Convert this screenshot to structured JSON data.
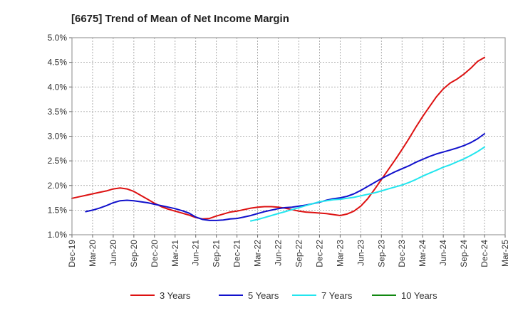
{
  "chart_data": {
    "type": "line",
    "title": "[6675]  Trend of Mean of Net Income Margin",
    "xlabel": "",
    "ylabel": "",
    "x_ticks": [
      "Dec-19",
      "Mar-20",
      "Jun-20",
      "Sep-20",
      "Dec-20",
      "Mar-21",
      "Jun-21",
      "Sep-21",
      "Dec-21",
      "Mar-22",
      "Jun-22",
      "Sep-22",
      "Dec-22",
      "Mar-23",
      "Jun-23",
      "Sep-23",
      "Dec-23",
      "Mar-24",
      "Jun-24",
      "Sep-24",
      "Dec-24",
      "Mar-25"
    ],
    "y_ticks": [
      "1.0%",
      "1.5%",
      "2.0%",
      "2.5%",
      "3.0%",
      "3.5%",
      "4.0%",
      "4.5%",
      "5.0%"
    ],
    "ylim": [
      1.0,
      5.0
    ],
    "grid": true,
    "legend_position": "bottom",
    "series": [
      {
        "name": "3 Years",
        "color": "#dd1111",
        "points": [
          [
            "Dec-19",
            1.74
          ],
          [
            "Jan-20",
            1.77
          ],
          [
            "Feb-20",
            1.8
          ],
          [
            "Mar-20",
            1.83
          ],
          [
            "Apr-20",
            1.86
          ],
          [
            "May-20",
            1.89
          ],
          [
            "Jun-20",
            1.93
          ],
          [
            "Jul-20",
            1.95
          ],
          [
            "Aug-20",
            1.93
          ],
          [
            "Sep-20",
            1.88
          ],
          [
            "Oct-20",
            1.8
          ],
          [
            "Nov-20",
            1.72
          ],
          [
            "Dec-20",
            1.64
          ],
          [
            "Jan-21",
            1.57
          ],
          [
            "Feb-21",
            1.52
          ],
          [
            "Mar-21",
            1.48
          ],
          [
            "Apr-21",
            1.44
          ],
          [
            "May-21",
            1.4
          ],
          [
            "Jun-21",
            1.35
          ],
          [
            "Jul-21",
            1.32
          ],
          [
            "Aug-21",
            1.33
          ],
          [
            "Sep-21",
            1.38
          ],
          [
            "Oct-21",
            1.42
          ],
          [
            "Nov-21",
            1.46
          ],
          [
            "Dec-21",
            1.48
          ],
          [
            "Jan-22",
            1.51
          ],
          [
            "Feb-22",
            1.54
          ],
          [
            "Mar-22",
            1.56
          ],
          [
            "Apr-22",
            1.57
          ],
          [
            "May-22",
            1.57
          ],
          [
            "Jun-22",
            1.56
          ],
          [
            "Jul-22",
            1.54
          ],
          [
            "Aug-22",
            1.51
          ],
          [
            "Sep-22",
            1.48
          ],
          [
            "Oct-22",
            1.46
          ],
          [
            "Nov-22",
            1.45
          ],
          [
            "Dec-22",
            1.44
          ],
          [
            "Jan-23",
            1.43
          ],
          [
            "Feb-23",
            1.41
          ],
          [
            "Mar-23",
            1.39
          ],
          [
            "Apr-23",
            1.42
          ],
          [
            "May-23",
            1.48
          ],
          [
            "Jun-23",
            1.58
          ],
          [
            "Jul-23",
            1.73
          ],
          [
            "Aug-23",
            1.92
          ],
          [
            "Sep-23",
            2.12
          ],
          [
            "Oct-23",
            2.32
          ],
          [
            "Nov-23",
            2.52
          ],
          [
            "Dec-23",
            2.73
          ],
          [
            "Jan-24",
            2.95
          ],
          [
            "Feb-24",
            3.18
          ],
          [
            "Mar-24",
            3.4
          ],
          [
            "Apr-24",
            3.6
          ],
          [
            "May-24",
            3.8
          ],
          [
            "Jun-24",
            3.96
          ],
          [
            "Jul-24",
            4.08
          ],
          [
            "Aug-24",
            4.16
          ],
          [
            "Sep-24",
            4.26
          ],
          [
            "Oct-24",
            4.38
          ],
          [
            "Nov-24",
            4.52
          ],
          [
            "Dec-24",
            4.6
          ]
        ]
      },
      {
        "name": "5 Years",
        "color": "#1111cc",
        "points": [
          [
            "Feb-20",
            1.47
          ],
          [
            "Mar-20",
            1.5
          ],
          [
            "Apr-20",
            1.54
          ],
          [
            "May-20",
            1.59
          ],
          [
            "Jun-20",
            1.65
          ],
          [
            "Jul-20",
            1.69
          ],
          [
            "Aug-20",
            1.7
          ],
          [
            "Sep-20",
            1.69
          ],
          [
            "Oct-20",
            1.67
          ],
          [
            "Nov-20",
            1.65
          ],
          [
            "Dec-20",
            1.62
          ],
          [
            "Jan-21",
            1.59
          ],
          [
            "Feb-21",
            1.56
          ],
          [
            "Mar-21",
            1.53
          ],
          [
            "Apr-21",
            1.49
          ],
          [
            "May-21",
            1.44
          ],
          [
            "Jun-21",
            1.36
          ],
          [
            "Jul-21",
            1.31
          ],
          [
            "Aug-21",
            1.29
          ],
          [
            "Sep-21",
            1.29
          ],
          [
            "Oct-21",
            1.3
          ],
          [
            "Nov-21",
            1.32
          ],
          [
            "Dec-21",
            1.33
          ],
          [
            "Jan-22",
            1.36
          ],
          [
            "Feb-22",
            1.39
          ],
          [
            "Mar-22",
            1.43
          ],
          [
            "Apr-22",
            1.47
          ],
          [
            "May-22",
            1.5
          ],
          [
            "Jun-22",
            1.53
          ],
          [
            "Jul-22",
            1.55
          ],
          [
            "Aug-22",
            1.56
          ],
          [
            "Sep-22",
            1.58
          ],
          [
            "Oct-22",
            1.6
          ],
          [
            "Nov-22",
            1.63
          ],
          [
            "Dec-22",
            1.66
          ],
          [
            "Jan-23",
            1.7
          ],
          [
            "Feb-23",
            1.73
          ],
          [
            "Mar-23",
            1.75
          ],
          [
            "Apr-23",
            1.78
          ],
          [
            "May-23",
            1.83
          ],
          [
            "Jun-23",
            1.9
          ],
          [
            "Jul-23",
            1.98
          ],
          [
            "Aug-23",
            2.06
          ],
          [
            "Sep-23",
            2.14
          ],
          [
            "Oct-23",
            2.21
          ],
          [
            "Nov-23",
            2.28
          ],
          [
            "Dec-23",
            2.34
          ],
          [
            "Jan-24",
            2.4
          ],
          [
            "Feb-24",
            2.47
          ],
          [
            "Mar-24",
            2.53
          ],
          [
            "Apr-24",
            2.59
          ],
          [
            "May-24",
            2.64
          ],
          [
            "Jun-24",
            2.68
          ],
          [
            "Jul-24",
            2.72
          ],
          [
            "Aug-24",
            2.76
          ],
          [
            "Sep-24",
            2.81
          ],
          [
            "Oct-24",
            2.87
          ],
          [
            "Nov-24",
            2.95
          ],
          [
            "Dec-24",
            3.05
          ]
        ]
      },
      {
        "name": "7 Years",
        "color": "#22e5ee",
        "points": [
          [
            "Feb-22",
            1.28
          ],
          [
            "Mar-22",
            1.31
          ],
          [
            "Apr-22",
            1.35
          ],
          [
            "May-22",
            1.39
          ],
          [
            "Jun-22",
            1.43
          ],
          [
            "Jul-22",
            1.47
          ],
          [
            "Aug-22",
            1.51
          ],
          [
            "Sep-22",
            1.55
          ],
          [
            "Oct-22",
            1.59
          ],
          [
            "Nov-22",
            1.63
          ],
          [
            "Dec-22",
            1.67
          ],
          [
            "Jan-23",
            1.69
          ],
          [
            "Feb-23",
            1.71
          ],
          [
            "Mar-23",
            1.72
          ],
          [
            "Apr-23",
            1.74
          ],
          [
            "May-23",
            1.76
          ],
          [
            "Jun-23",
            1.79
          ],
          [
            "Jul-23",
            1.82
          ],
          [
            "Aug-23",
            1.85
          ],
          [
            "Sep-23",
            1.89
          ],
          [
            "Oct-23",
            1.93
          ],
          [
            "Nov-23",
            1.97
          ],
          [
            "Dec-23",
            2.01
          ],
          [
            "Jan-24",
            2.06
          ],
          [
            "Feb-24",
            2.12
          ],
          [
            "Mar-24",
            2.19
          ],
          [
            "Apr-24",
            2.25
          ],
          [
            "May-24",
            2.31
          ],
          [
            "Jun-24",
            2.37
          ],
          [
            "Jul-24",
            2.42
          ],
          [
            "Aug-24",
            2.48
          ],
          [
            "Sep-24",
            2.54
          ],
          [
            "Oct-24",
            2.61
          ],
          [
            "Nov-24",
            2.69
          ],
          [
            "Dec-24",
            2.78
          ]
        ]
      },
      {
        "name": "10 Years",
        "color": "#118811",
        "points": []
      }
    ]
  }
}
